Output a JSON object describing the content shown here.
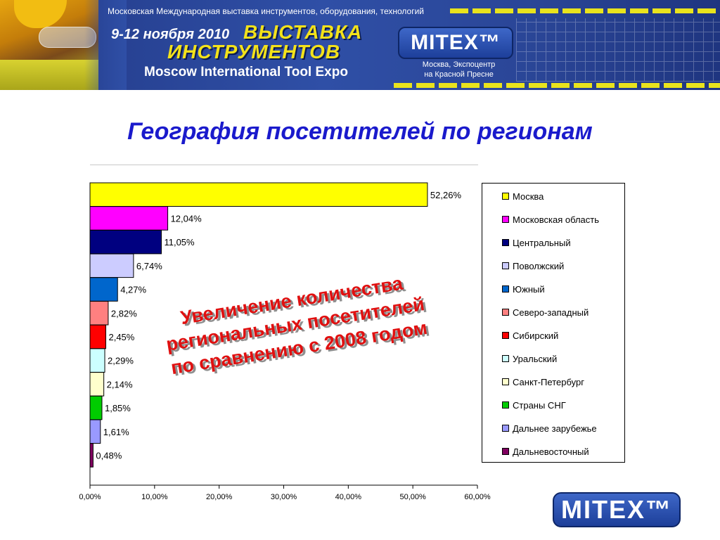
{
  "banner": {
    "subtitle": "Московская Международная выставка инструментов, оборудования, технологий",
    "dates": "9-12 ноября 2010",
    "expo_line1": "ВЫСТАВКА",
    "expo_line2": "ИНСТРУМЕНТОВ",
    "expo_en": "Moscow International Tool Expo",
    "brand": "MITEX™",
    "venue_line1": "Москва, Экспоцентр",
    "venue_line2": "на Красной Пресне"
  },
  "page_title": "География посетителей по регионам",
  "overlay": {
    "lines": [
      "Увеличение количества",
      "региональных посетителей",
      "по сравнению с 2008 годом"
    ],
    "color": "#e01010"
  },
  "footer": {
    "brand": "MITEX™"
  },
  "chart_data": {
    "type": "bar",
    "orientation": "horizontal",
    "title": "",
    "xlabel": "",
    "ylabel": "",
    "xlim": [
      0,
      60
    ],
    "x_ticks": [
      0,
      10,
      20,
      30,
      40,
      50,
      60
    ],
    "x_tick_labels": [
      "0,00%",
      "10,00%",
      "20,00%",
      "30,00%",
      "40,00%",
      "50,00%",
      "60,00%"
    ],
    "grid": false,
    "legend_position": "right",
    "categories": [
      "Москва",
      "Московская область",
      "Центральный",
      "Поволжский",
      "Южный",
      "Северо-западный",
      "Сибирский",
      "Уральский",
      "Санкт-Петербург",
      "Страны СНГ",
      "Дальнее зарубежье",
      "Дальневосточный"
    ],
    "values": [
      52.26,
      12.04,
      11.05,
      6.74,
      4.27,
      2.82,
      2.45,
      2.29,
      2.14,
      1.85,
      1.61,
      0.48
    ],
    "value_labels": [
      "52,26%",
      "12,04%",
      "11,05%",
      "6,74%",
      "4,27%",
      "2,82%",
      "2,45%",
      "2,29%",
      "2,14%",
      "1,85%",
      "1,61%",
      "0,48%"
    ],
    "colors": [
      "#ffff00",
      "#ff00ff",
      "#000080",
      "#ccccff",
      "#0066cc",
      "#ff8080",
      "#ff0000",
      "#ccffff",
      "#ffffcc",
      "#00cc00",
      "#9999ff",
      "#800060"
    ]
  }
}
